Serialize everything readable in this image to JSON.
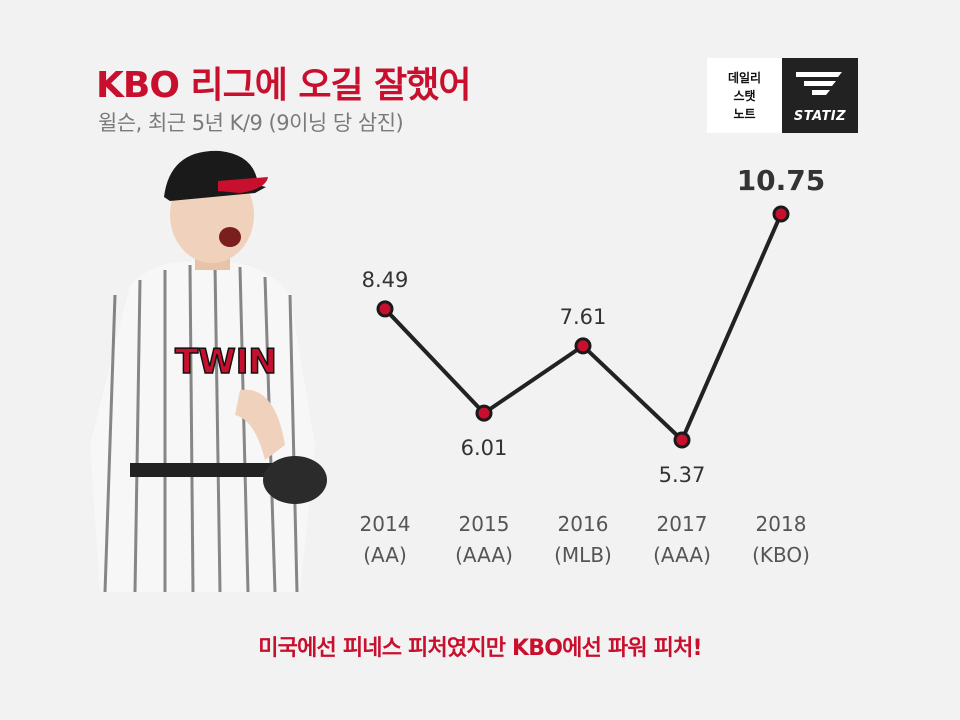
{
  "header": {
    "title": "KBO 리그에 오길 잘했어",
    "subtitle": "윌슨, 최근 5년 K/9 (9이닝 당 삼진)"
  },
  "logo": {
    "left_lines": [
      "데일리",
      "스탯",
      "노트"
    ],
    "wordmark": "STATIZ"
  },
  "chart_data": {
    "type": "line",
    "categories": [
      [
        "2014",
        "(AA)"
      ],
      [
        "2015",
        "(AAA)"
      ],
      [
        "2016",
        "(MLB)"
      ],
      [
        "2017",
        "(AAA)"
      ],
      [
        "2018",
        "(KBO)"
      ]
    ],
    "values": [
      8.49,
      6.01,
      7.61,
      5.37,
      10.75
    ],
    "value_labels": [
      "8.49",
      "6.01",
      "7.61",
      "5.37",
      "10.75"
    ],
    "highlight_index": 4,
    "grid": false,
    "legend": "none",
    "line_color": "#222222",
    "marker_color": "#c8102e"
  },
  "footer": {
    "caption": "미국에선 피네스 피처였지만 KBO에선 파워 피처!"
  },
  "colors": {
    "accent": "#c8102e",
    "background": "#f2f2f2"
  }
}
